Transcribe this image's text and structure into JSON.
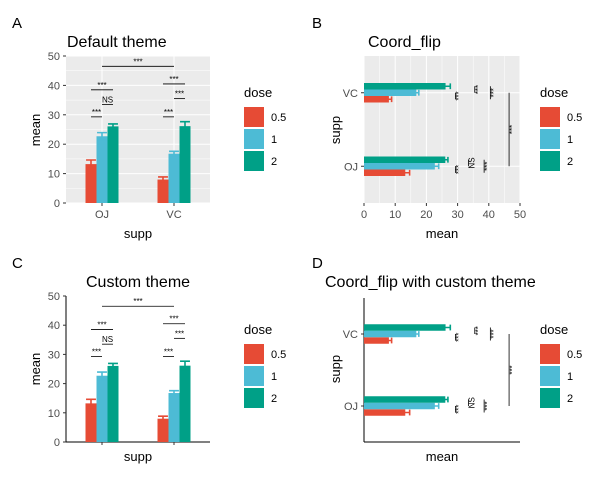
{
  "panel_labels": [
    "A",
    "B",
    "C",
    "D"
  ],
  "legend": {
    "title": "dose",
    "items": [
      {
        "label": "0.5",
        "color": "#E64B35"
      },
      {
        "label": "1",
        "color": "#4DBBD5"
      },
      {
        "label": "2",
        "color": "#00A087"
      }
    ]
  },
  "chart_data": [
    {
      "type": "bar",
      "title": "Default theme",
      "theme": "default (grey panel, white grid)",
      "xlabel": "supp",
      "ylabel": "mean",
      "categories": [
        "OJ",
        "VC"
      ],
      "ylim": [
        0,
        50
      ],
      "yticks": [
        "0",
        "10",
        "20",
        "30",
        "40",
        "50"
      ],
      "series": [
        {
          "name": "0.5",
          "values": [
            13.23,
            7.98
          ],
          "err": [
            1.4,
            0.87
          ]
        },
        {
          "name": "1",
          "values": [
            22.7,
            16.77
          ],
          "err": [
            1.24,
            0.8
          ]
        },
        {
          "name": "2",
          "values": [
            26.06,
            26.14
          ],
          "err": [
            0.84,
            1.52
          ]
        }
      ],
      "significance": [
        "***",
        "NS",
        "***",
        "***",
        "***",
        "***",
        "***"
      ]
    },
    {
      "type": "bar",
      "title": "Coord_flip",
      "orientation": "horizontal",
      "theme": "default (grey panel, white grid)",
      "xlabel": "mean",
      "ylabel": "supp",
      "categories": [
        "OJ",
        "VC"
      ],
      "xlim": [
        0,
        50
      ],
      "xticks": [
        "0",
        "10",
        "20",
        "30",
        "40",
        "50"
      ],
      "series": [
        {
          "name": "0.5",
          "values": [
            13.23,
            7.98
          ],
          "err": [
            1.4,
            0.87
          ]
        },
        {
          "name": "1",
          "values": [
            22.7,
            16.77
          ],
          "err": [
            1.24,
            0.8
          ]
        },
        {
          "name": "2",
          "values": [
            26.06,
            26.14
          ],
          "err": [
            0.84,
            1.52
          ]
        }
      ],
      "significance": [
        "***",
        "NS",
        "***",
        "***",
        "***",
        "***",
        "***"
      ]
    },
    {
      "type": "bar",
      "title": "Custom theme",
      "theme": "classic (white panel, axis lines, no grid)",
      "xlabel": "supp",
      "ylabel": "mean",
      "categories": [
        "OJ",
        "VC"
      ],
      "ylim": [
        0,
        50
      ],
      "yticks": [
        "0",
        "10",
        "20",
        "30",
        "40",
        "50"
      ],
      "series": [
        {
          "name": "0.5",
          "values": [
            13.23,
            7.98
          ],
          "err": [
            1.4,
            0.87
          ]
        },
        {
          "name": "1",
          "values": [
            22.7,
            16.77
          ],
          "err": [
            1.24,
            0.8
          ]
        },
        {
          "name": "2",
          "values": [
            26.06,
            26.14
          ],
          "err": [
            0.84,
            1.52
          ]
        }
      ],
      "significance": [
        "***",
        "NS",
        "***",
        "***",
        "***",
        "***",
        "***"
      ]
    },
    {
      "type": "bar",
      "title": "Coord_flip with custom theme",
      "orientation": "horizontal",
      "theme": "classic (white panel, axis lines, no grid)",
      "xlabel": "mean",
      "ylabel": "supp",
      "categories": [
        "OJ",
        "VC"
      ],
      "xlim": [
        0,
        50
      ],
      "series": [
        {
          "name": "0.5",
          "values": [
            13.23,
            7.98
          ],
          "err": [
            1.4,
            0.87
          ]
        },
        {
          "name": "1",
          "values": [
            22.7,
            16.77
          ],
          "err": [
            1.24,
            0.8
          ]
        },
        {
          "name": "2",
          "values": [
            26.06,
            26.14
          ],
          "err": [
            0.84,
            1.52
          ]
        }
      ],
      "significance": [
        "***",
        "NS",
        "***",
        "***",
        "***",
        "***",
        "***"
      ]
    }
  ]
}
